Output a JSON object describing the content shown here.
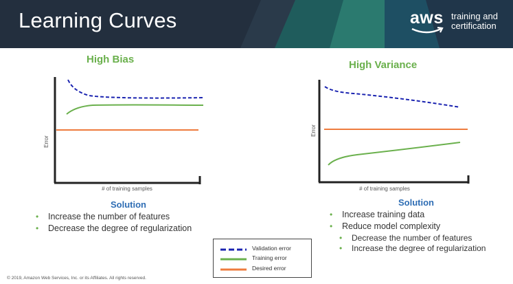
{
  "header": {
    "title": "Learning Curves",
    "logo": {
      "word": "aws",
      "line1": "training and",
      "line2": "certification"
    }
  },
  "colors": {
    "header_bg": "#232f3e",
    "validation": "#1a23b0",
    "training": "#6ab04c",
    "desired": "#ee7b3d",
    "solution": "#2e6db4"
  },
  "charts": [
    {
      "title": "High Bias",
      "y_axis_label": "Error",
      "x_axis_label": "# of training samples",
      "solution_title": "Solution",
      "solutions": [
        "Increase the number of features",
        "Decrease the degree of regularization"
      ]
    },
    {
      "title": "High Variance",
      "y_axis_label": "Error",
      "x_axis_label": "# of training samples",
      "solution_title": "Solution",
      "solutions": [
        "Increase training data",
        "Reduce model complexity"
      ],
      "sub_solutions": [
        "Decrease the number of features",
        "Increase the degree of regularization"
      ]
    }
  ],
  "legend": {
    "items": [
      {
        "label": "Validation error",
        "style": "dashed",
        "color": "#1a23b0"
      },
      {
        "label": "Training error",
        "style": "solid",
        "color": "#6ab04c"
      },
      {
        "label": "Desired error",
        "style": "solid",
        "color": "#ee7b3d"
      }
    ]
  },
  "footer": {
    "copyright": "© 2019, Amazon Web Services, Inc. or its Affiliates. All rights reserved."
  }
}
